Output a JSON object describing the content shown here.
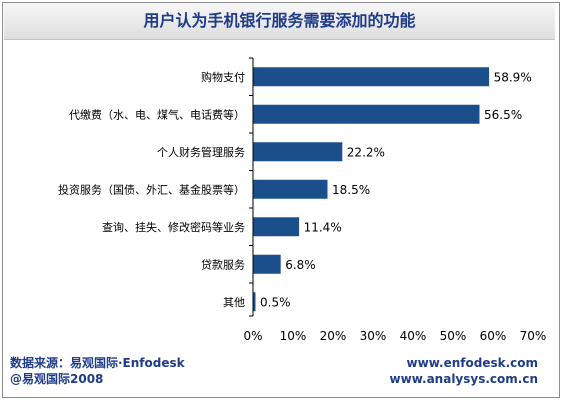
{
  "chart_data": {
    "type": "bar",
    "orientation": "horizontal",
    "title": "用户认为手机银行服务需要添加的功能",
    "categories": [
      "购物支付",
      "代缴费（水、电、煤气、电话费等）",
      "个人财务管理服务",
      "投资服务（国债、外汇、基金股票等）",
      "查询、挂失、修改密码等业务",
      "贷款服务",
      "其他"
    ],
    "values": [
      58.9,
      56.5,
      22.2,
      18.5,
      11.4,
      6.8,
      0.5
    ],
    "value_labels": [
      "58.9%",
      "56.5%",
      "22.2%",
      "18.5%",
      "11.4%",
      "6.8%",
      "0.5%"
    ],
    "xlim": [
      0,
      70
    ],
    "xticks": [
      0,
      10,
      20,
      30,
      40,
      50,
      60,
      70
    ],
    "xtick_labels": [
      "0%",
      "10%",
      "20%",
      "30%",
      "40%",
      "50%",
      "60%",
      "70%"
    ],
    "bar_color": "#1b4f8c",
    "grid": false,
    "legend": "none"
  },
  "footer": {
    "source": "数据来源：易观国际·Enfodesk",
    "copyright": "@易观国际2008",
    "url1": "www.enfodesk.com",
    "url2": "www.analysys.com.cn"
  },
  "colors": {
    "title": "#1f3c8a",
    "footer": "#1f3c8a"
  }
}
